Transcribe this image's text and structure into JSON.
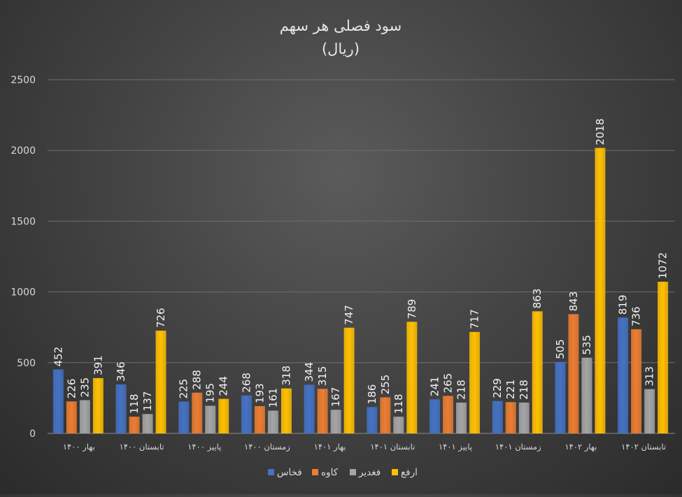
{
  "chart_data": {
    "type": "bar",
    "title": "سود فصلی هر سهم",
    "subtitle": "(ریال)",
    "categories": [
      "بهار ۱۴۰۰",
      "تابستان ۱۴۰۰",
      "پاییز ۱۴۰۰",
      "زمستان ۱۴۰۰",
      "بهار ۱۴۰۱",
      "تابستان ۱۴۰۱",
      "پاییز ۱۴۰۱",
      "زمستان ۱۴۰۱",
      "بهار ۱۴۰۲",
      "تابستان ۱۴۰۲"
    ],
    "series": [
      {
        "name": "فخاس",
        "color": "#4472c4",
        "values": [
          452,
          346,
          225,
          268,
          344,
          186,
          241,
          229,
          505,
          819
        ]
      },
      {
        "name": "کاوه",
        "color": "#ed7d31",
        "values": [
          226,
          118,
          288,
          193,
          315,
          255,
          265,
          221,
          843,
          736
        ]
      },
      {
        "name": "فغدیر",
        "color": "#a5a5a5",
        "values": [
          235,
          137,
          195,
          161,
          167,
          118,
          218,
          218,
          535,
          313
        ]
      },
      {
        "name": "ارفع",
        "color": "#ffc000",
        "values": [
          391,
          726,
          244,
          318,
          747,
          789,
          717,
          863,
          2018,
          1072
        ]
      }
    ],
    "ylim": [
      0,
      2500
    ],
    "yticks": [
      0,
      500,
      1000,
      1500,
      2000,
      2500
    ],
    "grid": true,
    "legend_position": "bottom"
  }
}
